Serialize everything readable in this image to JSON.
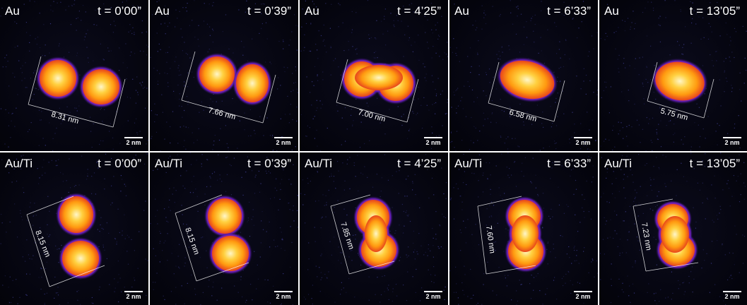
{
  "figure": {
    "rows": [
      {
        "material": "Au",
        "panels": [
          {
            "time": "t = 0’00”",
            "measurement": "8.31 nm",
            "scale_bar": "2 nm"
          },
          {
            "time": "t = 0’39”",
            "measurement": "7.66 nm",
            "scale_bar": "2 nm"
          },
          {
            "time": "t = 4’25”",
            "measurement": "7.00 nm",
            "scale_bar": "2 nm"
          },
          {
            "time": "t = 6’33”",
            "measurement": "6.58 nm",
            "scale_bar": "2 nm"
          },
          {
            "time": "t = 13’05”",
            "measurement": "5.75 nm",
            "scale_bar": "2 nm"
          }
        ]
      },
      {
        "material": "Au/Ti",
        "panels": [
          {
            "time": "t = 0’00”",
            "measurement": "8.15 nm",
            "scale_bar": "2 nm"
          },
          {
            "time": "t = 0’39”",
            "measurement": "8.15 nm",
            "scale_bar": "2 nm"
          },
          {
            "time": "t = 4’25”",
            "measurement": "7.85 nm",
            "scale_bar": "2 nm"
          },
          {
            "time": "t = 6’33”",
            "measurement": "7.60 nm",
            "scale_bar": "2 nm"
          },
          {
            "time": "t = 13’05”",
            "measurement": "7.23 nm",
            "scale_bar": "2 nm"
          }
        ]
      }
    ],
    "colors": {
      "background": "#05050f",
      "particle_core": "#fff4b0",
      "particle_mid": "#ffb000",
      "particle_outer": "#e0401a",
      "particle_halo": "#7a1bb0",
      "annotation": "#ffffff"
    }
  }
}
